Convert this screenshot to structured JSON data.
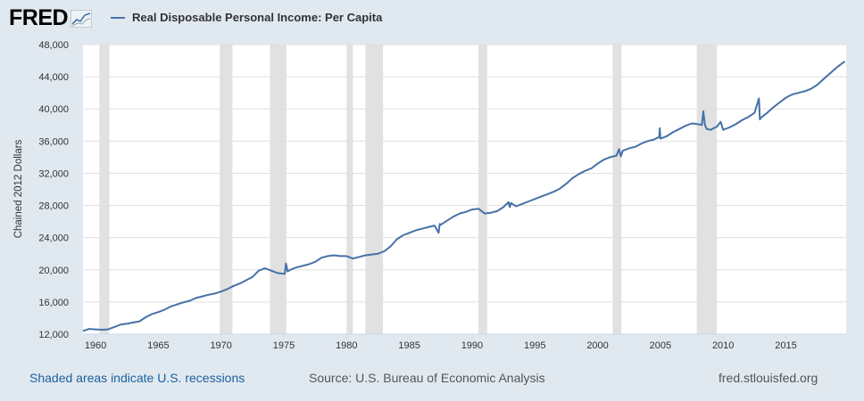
{
  "header": {
    "logo_text": "FRED",
    "series_label": "Real Disposable Personal Income: Per Capita"
  },
  "footer": {
    "recession_note": "Shaded areas indicate U.S. recessions",
    "source": "Source: U.S. Bureau of Economic Analysis",
    "site": "fred.stlouisfed.org"
  },
  "colors": {
    "series": "#4572a7",
    "recession": "#e1e1e1",
    "background": "#e1e9f0",
    "plot": "#ffffff",
    "grid": "#e0e0e0"
  },
  "chart_data": {
    "type": "line",
    "title": "Real Disposable Personal Income: Per Capita",
    "ylabel": "Chained 2012 Dollars",
    "xlabel": "",
    "xlim": [
      1959,
      2019.8
    ],
    "ylim": [
      12000,
      48000
    ],
    "yticks": [
      12000,
      16000,
      20000,
      24000,
      28000,
      32000,
      36000,
      40000,
      44000,
      48000
    ],
    "ytick_labels": [
      "12,000",
      "16,000",
      "20,000",
      "24,000",
      "28,000",
      "32,000",
      "36,000",
      "40,000",
      "44,000",
      "48,000"
    ],
    "xticks": [
      1960,
      1965,
      1970,
      1975,
      1980,
      1985,
      1990,
      1995,
      2000,
      2005,
      2010,
      2015
    ],
    "xtick_labels": [
      "1960",
      "1965",
      "1970",
      "1975",
      "1980",
      "1985",
      "1990",
      "1995",
      "2000",
      "2005",
      "2010",
      "2015"
    ],
    "grid": true,
    "recessions": [
      [
        1960.3,
        1961.1
      ],
      [
        1969.9,
        1970.9
      ],
      [
        1973.9,
        1975.2
      ],
      [
        1980.0,
        1980.5
      ],
      [
        1981.5,
        1982.9
      ],
      [
        1990.5,
        1991.2
      ],
      [
        2001.2,
        2001.9
      ],
      [
        2007.9,
        2009.5
      ]
    ],
    "series": [
      {
        "name": "Real Disposable Personal Income: Per Capita",
        "x": [
          1959.0,
          1959.5,
          1960.0,
          1960.5,
          1961.0,
          1961.5,
          1962.0,
          1962.5,
          1963.0,
          1963.5,
          1964.0,
          1964.5,
          1965.0,
          1965.5,
          1966.0,
          1966.5,
          1967.0,
          1967.5,
          1968.0,
          1968.5,
          1969.0,
          1969.5,
          1970.0,
          1970.5,
          1971.0,
          1971.5,
          1972.0,
          1972.5,
          1973.0,
          1973.5,
          1974.0,
          1974.5,
          1975.0,
          1975.08,
          1975.17,
          1975.3,
          1975.5,
          1976.0,
          1976.5,
          1977.0,
          1977.5,
          1978.0,
          1978.5,
          1979.0,
          1979.5,
          1980.0,
          1980.5,
          1981.0,
          1981.5,
          1982.0,
          1982.5,
          1983.0,
          1983.5,
          1984.0,
          1984.5,
          1985.0,
          1985.5,
          1986.0,
          1986.5,
          1987.0,
          1987.33,
          1987.42,
          1987.5,
          1988.0,
          1988.5,
          1989.0,
          1989.5,
          1990.0,
          1990.5,
          1991.0,
          1991.5,
          1992.0,
          1992.5,
          1992.9,
          1993.0,
          1993.1,
          1993.5,
          1994.0,
          1994.5,
          1995.0,
          1995.5,
          1996.0,
          1996.5,
          1997.0,
          1997.5,
          1998.0,
          1998.5,
          1999.0,
          1999.5,
          2000.0,
          2000.5,
          2001.0,
          2001.5,
          2001.7,
          2001.85,
          2002.0,
          2002.5,
          2003.0,
          2003.5,
          2004.0,
          2004.5,
          2004.9,
          2004.95,
          2005.0,
          2005.5,
          2006.0,
          2006.5,
          2007.0,
          2007.5,
          2008.0,
          2008.3,
          2008.42,
          2008.55,
          2008.7,
          2009.0,
          2009.5,
          2009.8,
          2010.0,
          2010.5,
          2011.0,
          2011.5,
          2012.0,
          2012.5,
          2012.85,
          2012.92,
          2013.0,
          2013.5,
          2014.0,
          2014.5,
          2015.0,
          2015.5,
          2016.0,
          2016.5,
          2017.0,
          2017.5,
          2018.0,
          2018.5,
          2019.0,
          2019.5,
          2019.7
        ],
        "values": [
          12400,
          12650,
          12600,
          12550,
          12600,
          12900,
          13200,
          13300,
          13450,
          13600,
          14100,
          14500,
          14750,
          15050,
          15450,
          15700,
          15950,
          16150,
          16500,
          16700,
          16900,
          17050,
          17300,
          17600,
          18000,
          18300,
          18700,
          19100,
          19900,
          20200,
          19900,
          19600,
          19500,
          19500,
          20800,
          19800,
          20000,
          20300,
          20500,
          20700,
          21000,
          21500,
          21700,
          21800,
          21700,
          21700,
          21400,
          21600,
          21800,
          21900,
          22000,
          22300,
          22900,
          23800,
          24300,
          24600,
          24900,
          25100,
          25300,
          25500,
          24600,
          25700,
          25600,
          26100,
          26600,
          27000,
          27200,
          27500,
          27600,
          27000,
          27100,
          27300,
          27800,
          28400,
          27800,
          28300,
          27900,
          28200,
          28500,
          28800,
          29100,
          29400,
          29700,
          30100,
          30700,
          31400,
          31900,
          32300,
          32600,
          33200,
          33700,
          34000,
          34200,
          35000,
          34100,
          34800,
          35100,
          35300,
          35700,
          36000,
          36200,
          36500,
          37600,
          36300,
          36600,
          37100,
          37500,
          37900,
          38200,
          38100,
          38000,
          39700,
          38000,
          37500,
          37400,
          37800,
          38400,
          37400,
          37700,
          38100,
          38600,
          39000,
          39500,
          41300,
          38700,
          38900,
          39500,
          40200,
          40800,
          41400,
          41800,
          42000,
          42200,
          42500,
          43000,
          43700,
          44400,
          45100,
          45700,
          45900
        ]
      }
    ]
  }
}
